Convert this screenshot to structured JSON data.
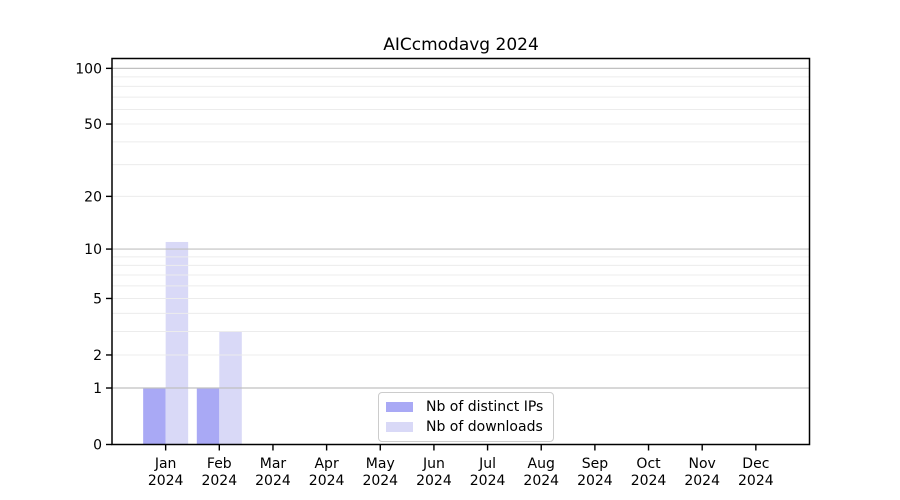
{
  "title": "AICcmodavg 2024",
  "chart_data": {
    "type": "bar",
    "title": "AICcmodavg 2024",
    "year_label": "2024",
    "categories": [
      "Jan",
      "Feb",
      "Mar",
      "Apr",
      "May",
      "Jun",
      "Jul",
      "Aug",
      "Sep",
      "Oct",
      "Nov",
      "Dec"
    ],
    "series": [
      {
        "name": "Nb of distinct IPs",
        "color": "#a9a9f5",
        "values": [
          1,
          1,
          0,
          0,
          0,
          0,
          0,
          0,
          0,
          0,
          0,
          0
        ]
      },
      {
        "name": "Nb of downloads",
        "color": "#d9d9f7",
        "values": [
          11,
          3,
          0,
          0,
          0,
          0,
          0,
          0,
          0,
          0,
          0,
          0
        ]
      }
    ],
    "y_axis": {
      "scale": "log1p",
      "tick_values": [
        0,
        1,
        2,
        5,
        10,
        20,
        50,
        100
      ],
      "major_grid_values": [
        1,
        10,
        100
      ],
      "minor_grid_values": [
        2,
        3,
        4,
        5,
        6,
        7,
        8,
        9,
        20,
        30,
        40,
        50,
        60,
        70,
        80,
        90
      ],
      "ylim": [
        0,
        113
      ]
    },
    "grid": true,
    "legend_position": "lower-center-inside",
    "colors": {
      "grid_major": "#c0c0c0",
      "grid_minor": "#ececec",
      "frame": "#000000",
      "text": "#000000",
      "background": "#ffffff"
    }
  }
}
